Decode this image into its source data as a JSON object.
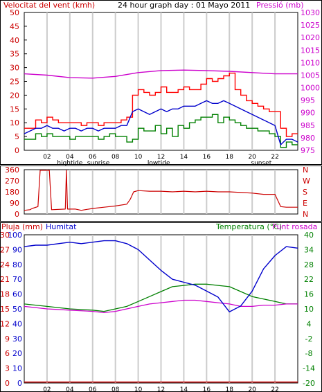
{
  "title": "24 hour graph day : 01 Mayo 2011",
  "x_ticks": [
    "02",
    "04",
    "06",
    "08",
    "10",
    "12",
    "14",
    "16",
    "18",
    "20",
    "22"
  ],
  "tide_labels": [
    {
      "hour": 4,
      "text": "hightide"
    },
    {
      "hour": 6.5,
      "text": "sunrise"
    },
    {
      "hour": 11.8,
      "text": "lowtide"
    },
    {
      "hour": 20.8,
      "text": "sunset"
    }
  ],
  "wind": {
    "left_label": "Velocitat del vent (kmh)",
    "right_label": "Pressió (mb)",
    "left_ticks": [
      "0",
      "5",
      "10",
      "15",
      "20",
      "25",
      "30",
      "35",
      "40",
      "45",
      "50"
    ],
    "right_ticks": [
      "975",
      "980",
      "985",
      "990",
      "995",
      "1000",
      "1005",
      "1010",
      "1015",
      "1020",
      "1025",
      "1030"
    ]
  },
  "direction": {
    "left_ticks": [
      "0",
      "90",
      "180",
      "270",
      "360"
    ],
    "right_letters": [
      "N",
      "W",
      "S",
      "E",
      "N"
    ]
  },
  "weather": {
    "rain_label": "Pluja (mm)",
    "humidity_label": "Humitat",
    "temp_label": "Temperatura (°C)",
    "dew_label": "Punt rosada",
    "rain_ticks": [
      "0",
      "3",
      "6",
      "9",
      "12",
      "15",
      "18",
      "21",
      "24",
      "27",
      "30"
    ],
    "humidity_ticks": [
      "0",
      "10",
      "20",
      "30",
      "40",
      "50",
      "60",
      "70",
      "80",
      "90",
      "100"
    ],
    "temp_ticks": [
      "-20",
      "-14",
      "-8",
      "-2",
      "4",
      "10",
      "16",
      "22",
      "28",
      "34",
      "40"
    ]
  },
  "colors": {
    "gust": "#ff0000",
    "speed": "#0000cc",
    "avg": "#008000",
    "pressure": "#cc00cc",
    "direction": "#cc0000",
    "humidity": "#0000cc",
    "temp": "#008000",
    "dew": "#cc00cc",
    "rain": "#cc0000"
  },
  "chart_data": [
    {
      "type": "line",
      "title": "24 hour graph day : 01 Mayo 2011",
      "ylabel": "Velocitat del vent (kmh)",
      "ylim": [
        0,
        50
      ],
      "y2label": "Pressió (mb)",
      "y2lim": [
        975,
        1030
      ],
      "x_unit": "hour",
      "series": [
        {
          "name": "gust",
          "axis": "left",
          "x": [
            0,
            1,
            1.5,
            2,
            2.5,
            3,
            3.5,
            4,
            4.5,
            5,
            5.5,
            6,
            6.5,
            7,
            7.5,
            8,
            8.5,
            9,
            9.5,
            10,
            10.5,
            11,
            11.5,
            12,
            12.5,
            13,
            13.5,
            14,
            14.5,
            15,
            15.5,
            16,
            16.5,
            17,
            17.5,
            18,
            18.5,
            19,
            19.5,
            20,
            20.5,
            21,
            21.5,
            22,
            22.5,
            23,
            23.5,
            24
          ],
          "values": [
            8,
            11,
            10,
            12,
            11,
            10,
            10,
            10,
            10,
            9,
            10,
            10,
            9,
            10,
            10,
            10,
            11,
            12,
            20,
            22,
            21,
            20,
            21,
            23,
            21,
            21,
            22,
            23,
            22,
            22,
            24,
            26,
            25,
            26,
            27,
            28,
            22,
            20,
            18,
            17,
            16,
            15,
            14,
            14,
            8,
            5,
            6,
            6
          ]
        },
        {
          "name": "speed",
          "axis": "left",
          "x": [
            0,
            1,
            1.5,
            2,
            2.5,
            3,
            3.5,
            4,
            4.5,
            5,
            5.5,
            6,
            6.5,
            7,
            7.5,
            8,
            8.5,
            9,
            9.5,
            10,
            10.5,
            11,
            11.5,
            12,
            12.5,
            13,
            13.5,
            14,
            14.5,
            15,
            15.5,
            16,
            16.5,
            17,
            17.5,
            18,
            18.5,
            19,
            19.5,
            20,
            20.5,
            21,
            21.5,
            22,
            22.5,
            23,
            23.5,
            24
          ],
          "values": [
            6,
            8,
            8,
            9,
            8,
            8,
            7,
            8,
            8,
            7,
            8,
            8,
            7,
            8,
            8,
            8,
            9,
            9,
            14,
            15,
            14,
            13,
            14,
            15,
            14,
            15,
            15,
            16,
            16,
            16,
            17,
            18,
            17,
            17,
            18,
            17,
            16,
            15,
            14,
            13,
            12,
            11,
            10,
            9,
            2,
            4,
            4,
            3
          ]
        },
        {
          "name": "average",
          "axis": "left",
          "x": [
            0,
            1,
            1.5,
            2,
            2.5,
            3,
            3.5,
            4,
            4.5,
            5,
            5.5,
            6,
            6.5,
            7,
            7.5,
            8,
            8.5,
            9,
            9.5,
            10,
            10.5,
            11,
            11.5,
            12,
            12.5,
            13,
            13.5,
            14,
            14.5,
            15,
            15.5,
            16,
            16.5,
            17,
            17.5,
            18,
            18.5,
            19,
            19.5,
            20,
            20.5,
            21,
            21.5,
            22,
            22.5,
            23,
            23.5,
            24
          ],
          "values": [
            4,
            6,
            5,
            6,
            5,
            5,
            5,
            4,
            5,
            5,
            5,
            5,
            4,
            5,
            6,
            5,
            5,
            3,
            4,
            8,
            7,
            7,
            9,
            6,
            8,
            5,
            9,
            8,
            10,
            11,
            12,
            12,
            13,
            10,
            12,
            11,
            10,
            9,
            8,
            8,
            7,
            7,
            6,
            5,
            1,
            3,
            2,
            2
          ]
        },
        {
          "name": "pressure",
          "axis": "right",
          "x": [
            0,
            2,
            4,
            6,
            8,
            10,
            12,
            14,
            16,
            18,
            20,
            22,
            24
          ],
          "values": [
            1005.5,
            1005,
            1004,
            1003.8,
            1004.5,
            1006,
            1006.8,
            1007,
            1006.8,
            1006.5,
            1006,
            1005.5,
            1005.5
          ]
        }
      ]
    },
    {
      "type": "line",
      "ylabel": "",
      "ylim": [
        0,
        360
      ],
      "x_unit": "hour",
      "series": [
        {
          "name": "direction",
          "x": [
            0,
            0.5,
            0.7,
            1.2,
            1.4,
            2.2,
            2.4,
            3.6,
            3.7,
            3.8,
            4.5,
            5,
            6,
            7,
            8,
            9,
            9.3,
            9.6,
            10,
            11,
            12,
            13,
            14,
            15,
            16,
            17,
            18,
            19,
            20,
            21,
            22,
            22.5,
            23,
            24
          ],
          "values": [
            30,
            35,
            45,
            60,
            355,
            355,
            35,
            40,
            355,
            40,
            40,
            30,
            45,
            55,
            65,
            80,
            120,
            180,
            190,
            185,
            185,
            180,
            185,
            180,
            185,
            180,
            180,
            175,
            170,
            160,
            160,
            60,
            55,
            55
          ]
        }
      ]
    },
    {
      "type": "line",
      "ylabel": "Pluja (mm)",
      "ylim": [
        0,
        30
      ],
      "y2label": "Temperatura (°C)",
      "y2lim": [
        -20,
        40
      ],
      "x_unit": "hour",
      "series": [
        {
          "name": "rain",
          "axis": "rain",
          "x": [
            0,
            24
          ],
          "values": [
            0.2,
            0.2
          ]
        },
        {
          "name": "humidity",
          "axis": "humidity",
          "x": [
            0,
            1,
            2,
            3,
            4,
            5,
            6,
            7,
            8,
            9,
            10,
            11,
            12,
            13,
            14,
            15,
            16,
            17,
            18,
            19,
            20,
            21,
            22,
            23,
            24
          ],
          "values": [
            92,
            93,
            93,
            94,
            95,
            94,
            95,
            96,
            96,
            94,
            90,
            83,
            76,
            70,
            68,
            66,
            62,
            58,
            48,
            52,
            62,
            77,
            86,
            92,
            91
          ]
        },
        {
          "name": "temperature",
          "axis": "temp",
          "x": [
            0,
            2,
            4,
            6,
            7,
            8,
            9,
            10,
            11,
            12,
            13,
            14,
            15,
            16,
            17,
            18,
            19,
            20,
            21,
            22,
            23,
            24
          ],
          "values": [
            12,
            11,
            10,
            9.5,
            9,
            10,
            11,
            13,
            15,
            17,
            19,
            19.5,
            20,
            20,
            19.5,
            19,
            17,
            15,
            14,
            13,
            12,
            12
          ]
        },
        {
          "name": "dew_point",
          "axis": "temp",
          "x": [
            0,
            2,
            4,
            6,
            7,
            8,
            9,
            10,
            11,
            12,
            13,
            14,
            15,
            16,
            17,
            18,
            19,
            20,
            21,
            22,
            23,
            24
          ],
          "values": [
            11,
            10,
            9.5,
            9,
            8.5,
            9,
            10,
            11,
            12,
            12.5,
            13,
            13.5,
            13.5,
            13,
            12.5,
            12,
            11,
            11,
            11.5,
            11.5,
            12,
            12
          ]
        }
      ]
    }
  ]
}
